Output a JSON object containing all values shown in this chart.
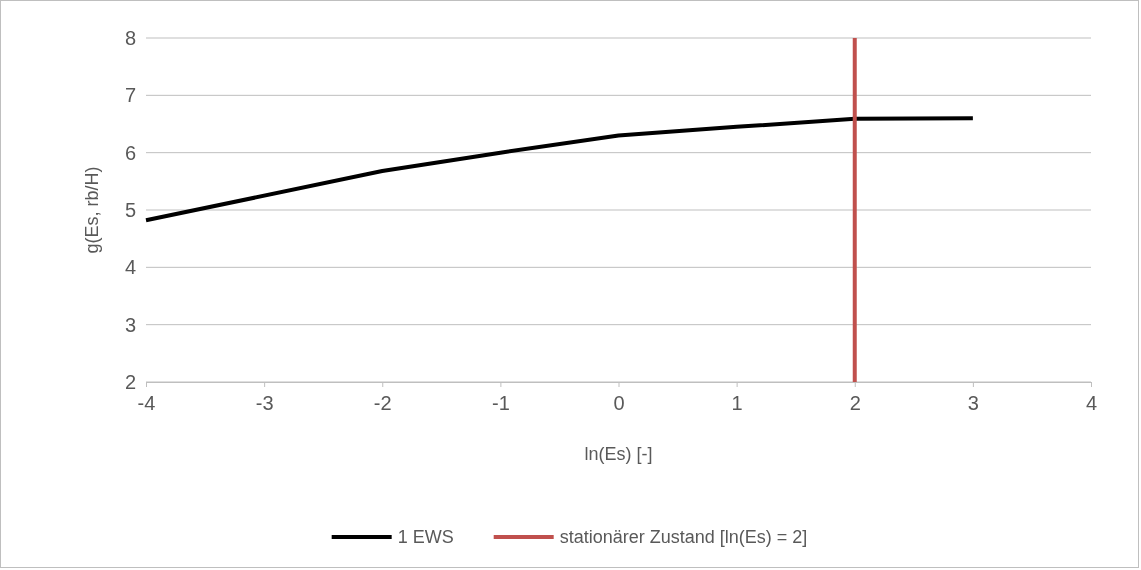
{
  "chart_data": {
    "type": "line",
    "xlabel": "ln(Es) [-]",
    "ylabel": "g(Es, rb/H)",
    "xlim": [
      -4,
      4
    ],
    "xticks": [
      -4,
      -3,
      -2,
      -1,
      0,
      1,
      2,
      3,
      4
    ],
    "ylim": [
      2,
      8
    ],
    "yticks": [
      2,
      3,
      4,
      5,
      6,
      7,
      8
    ],
    "grid": "y",
    "legend": "bottom",
    "marker": "none",
    "line_style": "solid",
    "series": [
      {
        "name": "1 EWS",
        "color": "#000000",
        "x": [
          -4,
          -2,
          -1,
          0,
          1,
          2,
          3
        ],
        "values": [
          4.82,
          5.68,
          6.0,
          6.3,
          6.45,
          6.59,
          6.6
        ]
      },
      {
        "name": "stationärer Zustand [ln(Es) = 2]",
        "color": "#c0504d",
        "x": [
          2,
          2
        ],
        "values": [
          2,
          8
        ]
      }
    ]
  }
}
